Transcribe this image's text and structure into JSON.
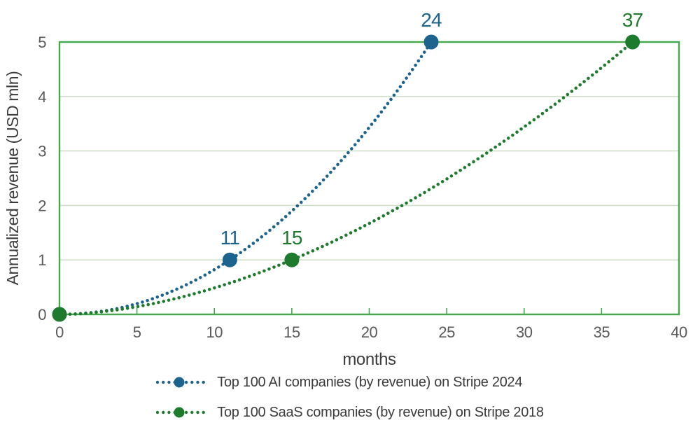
{
  "chart_data": {
    "type": "line",
    "title": "",
    "xlabel": "months",
    "ylabel": "Annualized revenue (USD mln)",
    "xlim": [
      0,
      40
    ],
    "ylim": [
      0,
      5
    ],
    "xticks": [
      0,
      5,
      10,
      15,
      20,
      25,
      30,
      35,
      40
    ],
    "yticks": [
      0,
      1,
      2,
      3,
      4,
      5
    ],
    "grid": "horizontal",
    "legend_position": "bottom",
    "colors": {
      "axis": "#45a84e",
      "grid": "#d0e0ca",
      "tick_label": "#5a5a5a",
      "axis_title": "#3c3c3c"
    },
    "series": [
      {
        "name": "Top 100 AI companies (by revenue) on Stripe 2024",
        "color": "#1c648e",
        "line_style": "dotted",
        "points": [
          {
            "x": 0,
            "y": 0
          },
          {
            "x": 11,
            "y": 1
          },
          {
            "x": 24,
            "y": 5
          }
        ],
        "annotations": [
          {
            "x": 11,
            "y": 1,
            "text": "11"
          },
          {
            "x": 24,
            "y": 5,
            "text": "24"
          }
        ]
      },
      {
        "name": "Top 100 SaaS companies (by revenue) on Stripe 2018",
        "color": "#1e7b2e",
        "line_style": "dotted",
        "points": [
          {
            "x": 0,
            "y": 0
          },
          {
            "x": 15,
            "y": 1
          },
          {
            "x": 37,
            "y": 5
          }
        ],
        "annotations": [
          {
            "x": 15,
            "y": 1,
            "text": "15"
          },
          {
            "x": 37,
            "y": 5,
            "text": "37"
          }
        ]
      }
    ]
  }
}
